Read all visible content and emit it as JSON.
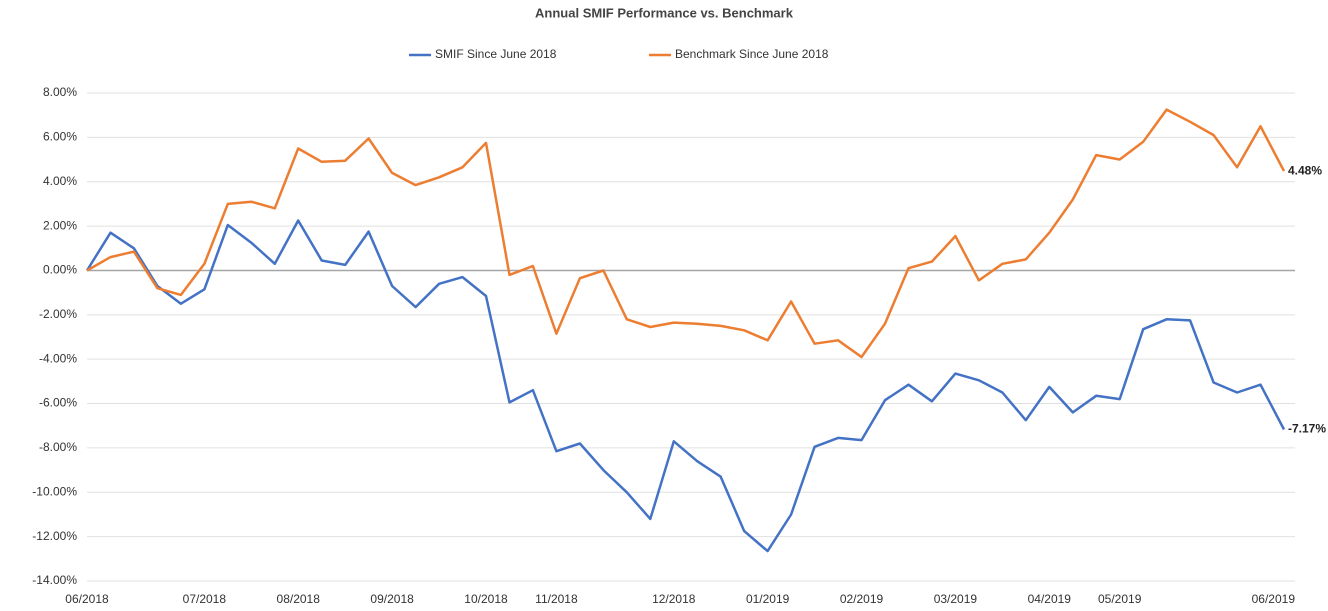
{
  "chart_data": {
    "type": "line",
    "title": "Annual SMIF Performance vs. Benchmark",
    "categories": [
      "06/2018",
      null,
      null,
      null,
      null,
      "07/2018",
      null,
      null,
      null,
      "08/2018",
      null,
      null,
      null,
      "09/2018",
      null,
      null,
      null,
      "10/2018",
      null,
      null,
      "11/2018",
      null,
      null,
      null,
      null,
      "12/2018",
      null,
      null,
      null,
      "01/2019",
      null,
      null,
      null,
      "02/2019",
      null,
      null,
      null,
      "03/2019",
      null,
      null,
      null,
      "04/2019",
      null,
      null,
      "05/2019",
      null,
      null,
      null,
      null,
      null,
      null,
      "06/2019"
    ],
    "series": [
      {
        "name": "SMIF Since June 2018",
        "color": "#4472c4",
        "values": [
          0,
          1.7,
          1.0,
          -0.7,
          -1.5,
          -0.85,
          2.05,
          1.25,
          0.3,
          2.25,
          0.45,
          0.25,
          1.75,
          -0.7,
          -1.65,
          -0.6,
          -0.3,
          -1.15,
          -5.95,
          -5.4,
          -8.15,
          -7.8,
          -9.0,
          -10.0,
          -11.2,
          -7.7,
          -8.6,
          -9.3,
          -11.75,
          -12.65,
          -11.0,
          -7.95,
          -7.55,
          -7.65,
          -5.85,
          -5.15,
          -5.9,
          -4.65,
          -4.95,
          -5.5,
          -6.75,
          -5.25,
          -6.4,
          -5.65,
          -5.8,
          -2.65,
          -2.2,
          -2.25,
          -5.05,
          -5.5,
          -5.15,
          -7.17
        ],
        "value_labels": [
          null,
          null,
          null,
          null,
          null,
          null,
          null,
          null,
          null,
          null,
          null,
          null,
          null,
          null,
          null,
          null,
          null,
          null,
          null,
          null,
          null,
          null,
          null,
          null,
          null,
          null,
          null,
          null,
          null,
          null,
          null,
          null,
          null,
          null,
          null,
          null,
          null,
          null,
          null,
          null,
          null,
          null,
          null,
          null,
          null,
          null,
          null,
          null,
          null,
          null,
          null,
          "-7.17%"
        ]
      },
      {
        "name": "Benchmark Since June 2018",
        "color": "#ed7d31",
        "values": [
          0,
          0.6,
          0.85,
          -0.8,
          -1.1,
          0.3,
          3.0,
          3.1,
          2.8,
          5.5,
          4.9,
          4.95,
          5.95,
          4.4,
          3.85,
          4.2,
          4.65,
          5.75,
          -0.2,
          0.2,
          -2.85,
          -0.35,
          0.0,
          -2.2,
          -2.55,
          -2.35,
          -2.4,
          -2.5,
          -2.7,
          -3.15,
          -1.4,
          -3.3,
          -3.15,
          -3.9,
          -2.4,
          0.1,
          0.4,
          1.55,
          -0.45,
          0.3,
          0.5,
          1.7,
          3.2,
          5.2,
          5.0,
          5.8,
          7.25,
          6.7,
          6.1,
          4.65,
          6.5,
          4.48
        ],
        "value_labels": [
          null,
          null,
          null,
          null,
          null,
          null,
          null,
          null,
          null,
          null,
          null,
          null,
          null,
          null,
          null,
          null,
          null,
          null,
          null,
          null,
          null,
          null,
          null,
          null,
          null,
          null,
          null,
          null,
          null,
          null,
          null,
          null,
          null,
          null,
          null,
          null,
          null,
          null,
          null,
          null,
          null,
          null,
          null,
          null,
          null,
          null,
          null,
          null,
          null,
          null,
          null,
          "4.48%"
        ]
      }
    ],
    "ylim": [
      -14,
      8
    ],
    "yticks": [
      {
        "value": -14,
        "label": "-14.00%"
      },
      {
        "value": -12,
        "label": "-12.00%"
      },
      {
        "value": -10,
        "label": "-10.00%"
      },
      {
        "value": -8,
        "label": "-8.00%"
      },
      {
        "value": -6,
        "label": "-6.00%"
      },
      {
        "value": -4,
        "label": "-4.00%"
      },
      {
        "value": -2,
        "label": "-2.00%"
      },
      {
        "value": 0,
        "label": "0.00%"
      },
      {
        "value": 2,
        "label": "2.00%"
      },
      {
        "value": 4,
        "label": "4.00%"
      },
      {
        "value": 6,
        "label": "6.00%"
      },
      {
        "value": 8,
        "label": "8.00%"
      }
    ],
    "grid": true,
    "legend": "top"
  }
}
